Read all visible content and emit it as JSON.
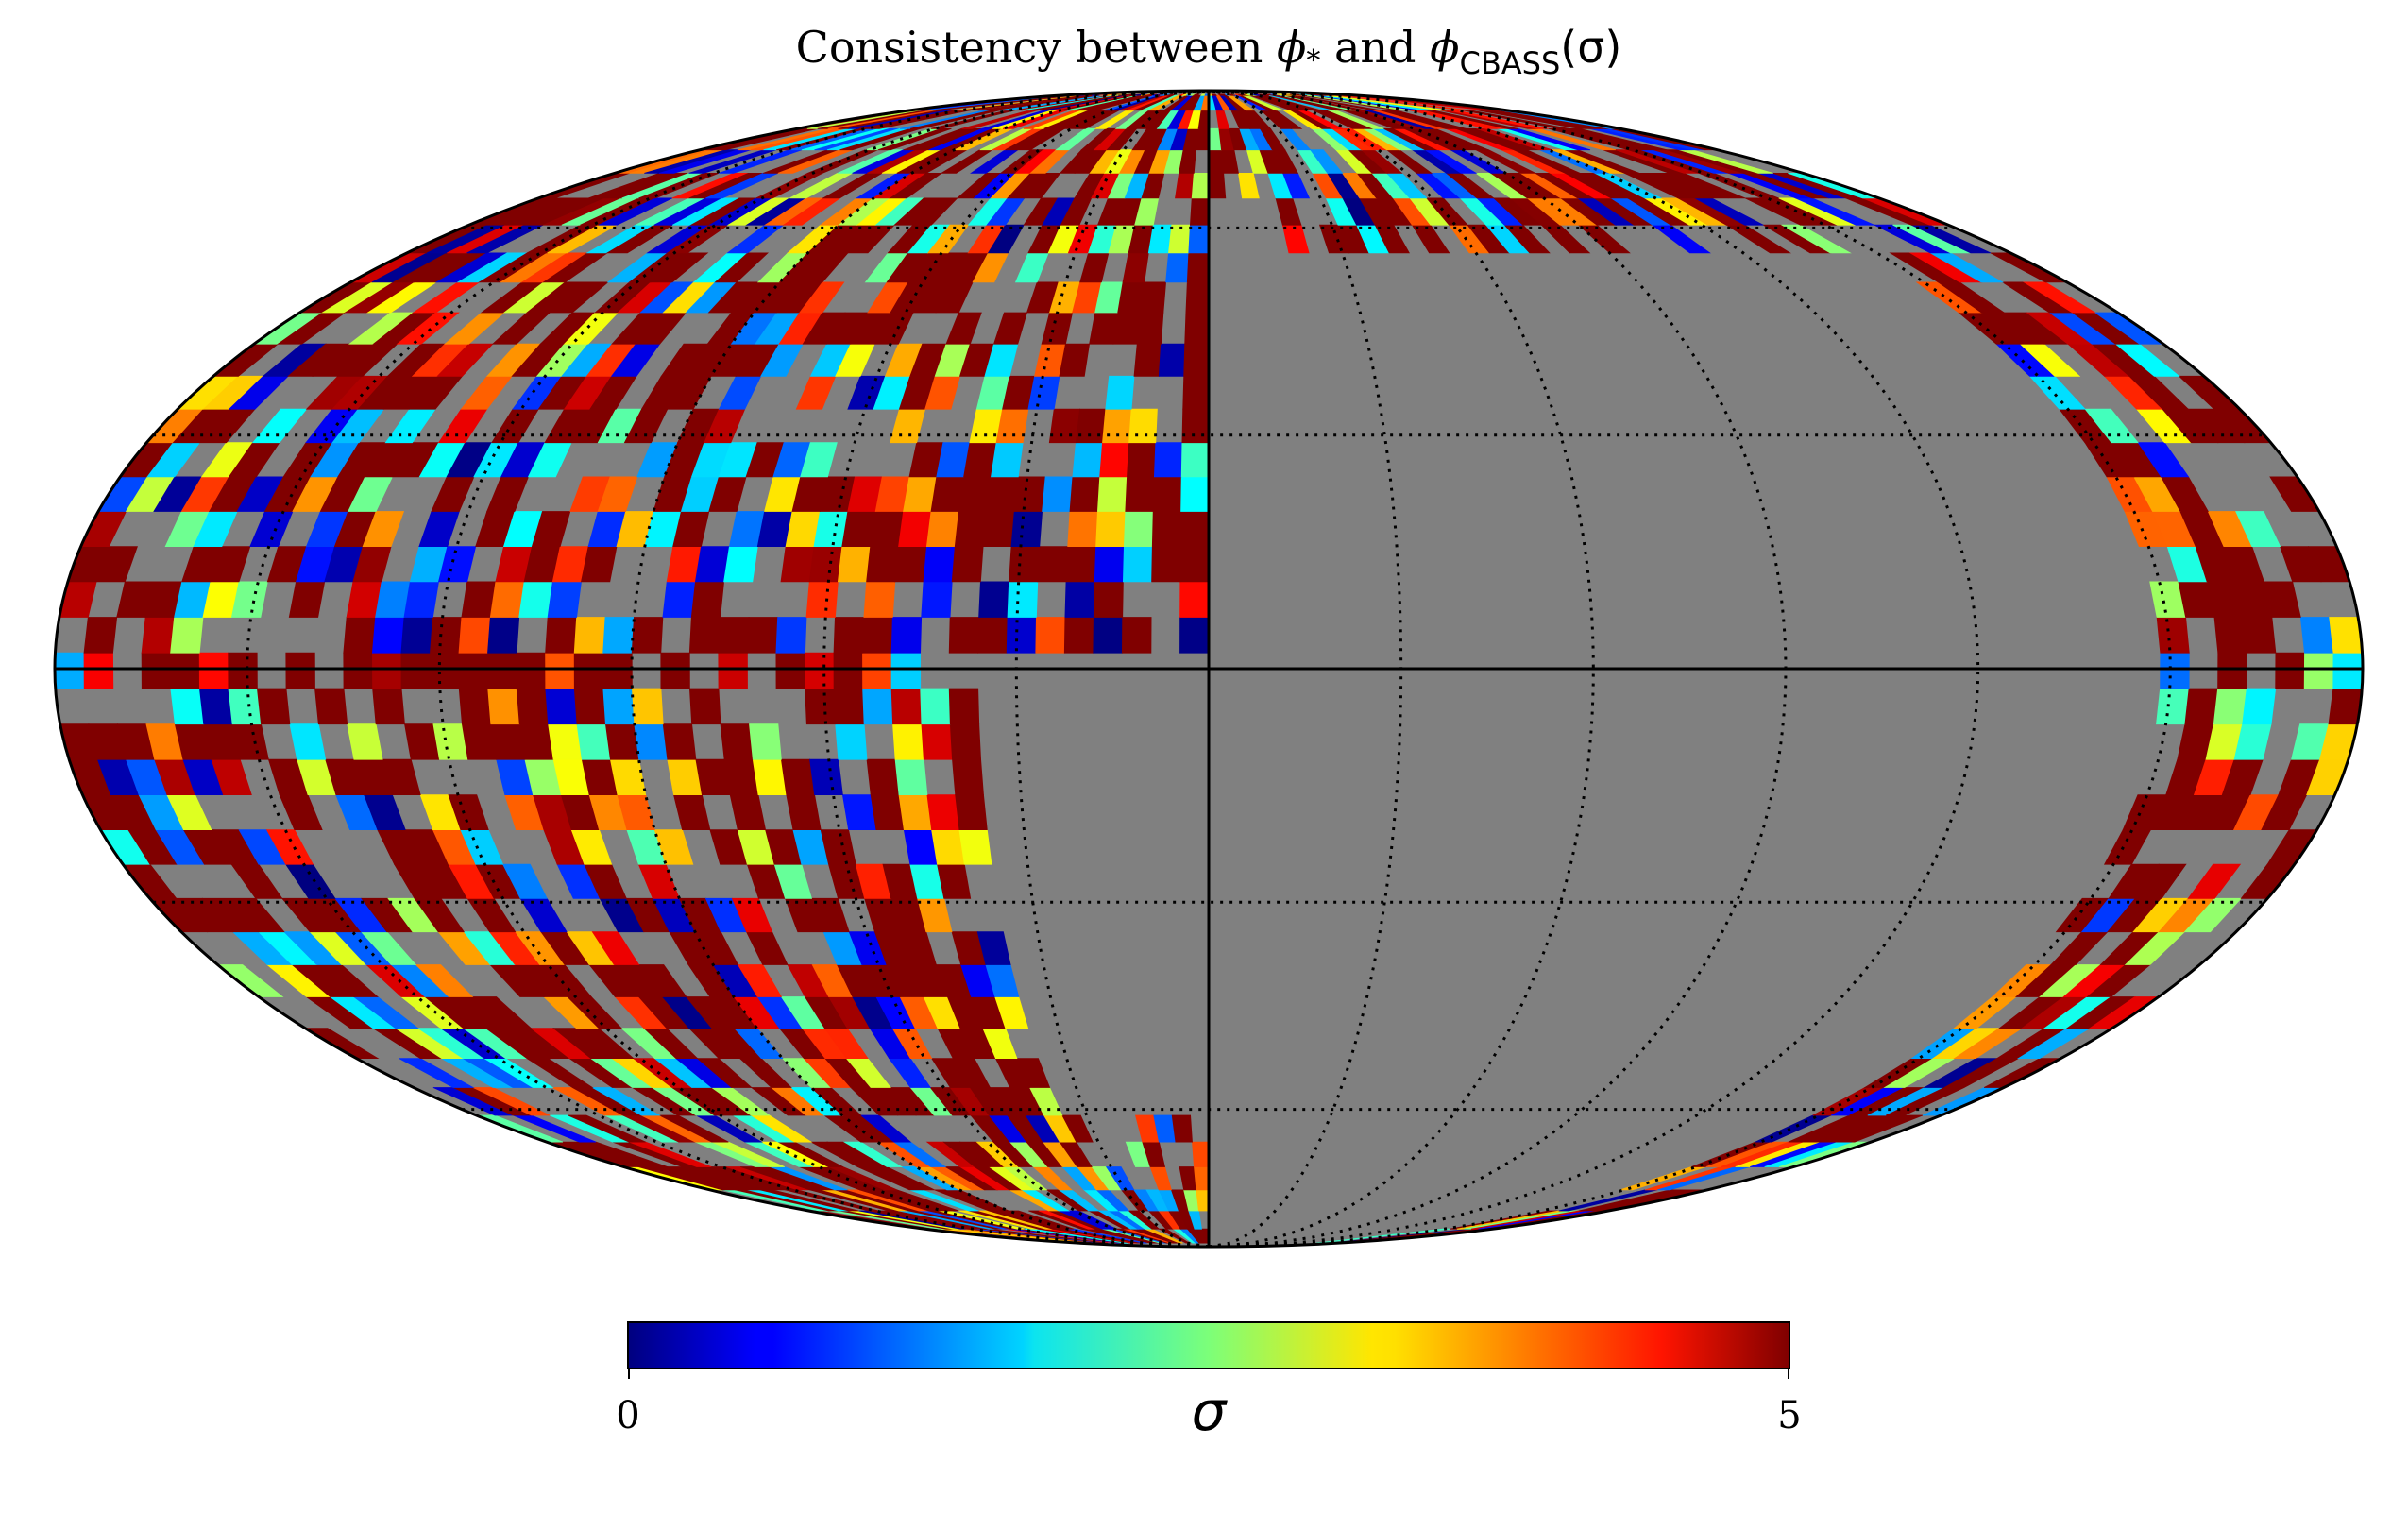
{
  "figure": {
    "title_prefix": "Consistency between ",
    "title_phi": "ϕ",
    "title_star": "*",
    "title_and": " and ",
    "title_phi2": "ϕ",
    "title_sub": "CBASS",
    "title_arg": "(σ)"
  },
  "chart_data": {
    "type": "heatmap",
    "projection": "mollweide",
    "title": "Consistency between ϕ* and ϕCBASS(σ)",
    "colorbar": {
      "label": "σ",
      "min": 0,
      "max": 5,
      "tick_labels": [
        "0",
        "5"
      ],
      "colormap": "jet",
      "orientation": "horizontal"
    },
    "masked_color": "#808080",
    "saturated_color": "#800000",
    "graticule": {
      "meridians_deg": [
        -150,
        -120,
        -90,
        -60,
        -30,
        0,
        30,
        60,
        90,
        120,
        150
      ],
      "parallels_deg": [
        -60,
        -30,
        0,
        30,
        60
      ],
      "style": "dotted"
    },
    "masked_region": "right half of the sphere and the lower-centre region are masked (grey)",
    "grid": true,
    "legend": "none"
  }
}
